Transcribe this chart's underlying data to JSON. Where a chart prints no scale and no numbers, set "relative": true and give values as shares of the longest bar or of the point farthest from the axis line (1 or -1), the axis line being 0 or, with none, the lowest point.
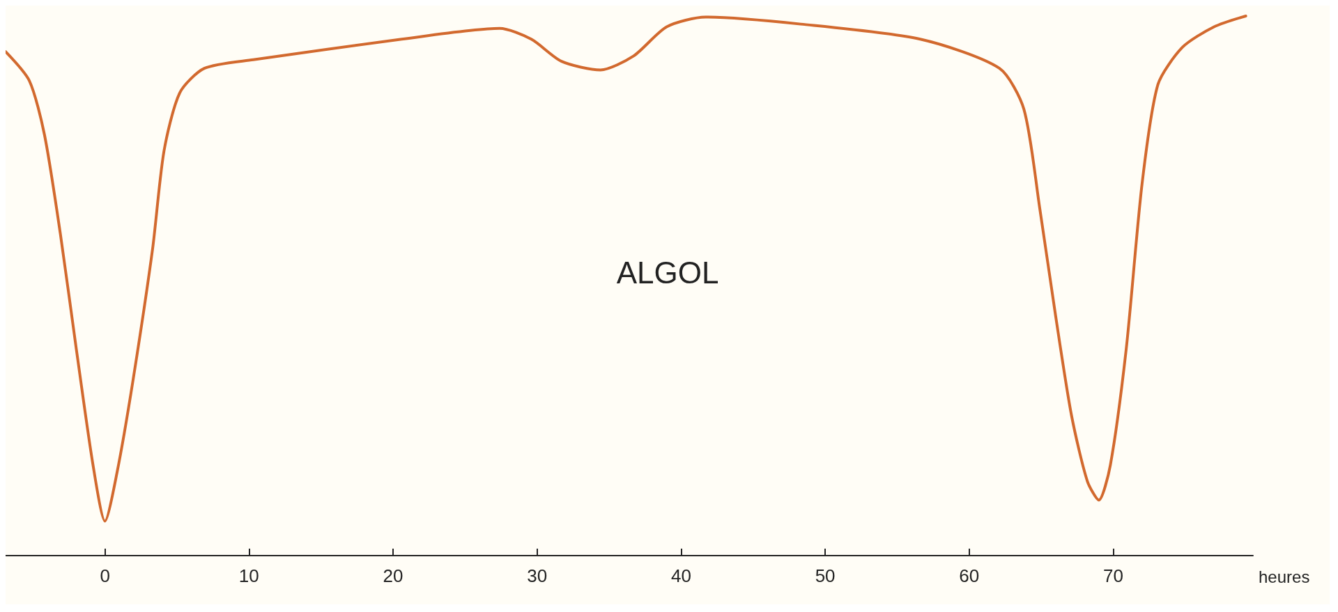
{
  "chart_data": {
    "type": "line",
    "relative": true,
    "xlabel": "heures",
    "annotations": [
      "ALGOL"
    ],
    "xlim": [
      -6.9,
      79.7
    ],
    "xticks": [
      0,
      10,
      20,
      30,
      40,
      50,
      60,
      70
    ],
    "grid": false,
    "marker": "none",
    "line_style": "solid",
    "tick_labels": "x",
    "series": [
      {
        "color": "#d2692e",
        "x": [
          -6.9,
          -5.25,
          -4.2,
          -3.1,
          -1.99,
          -0.83,
          0,
          0.83,
          1.93,
          3.3,
          4.1,
          5.2,
          6.9,
          10.3,
          20.6,
          27.4,
          29.6,
          31.7,
          34.4,
          36.7,
          39,
          41.7,
          48.3,
          56.6,
          62.1,
          63.8,
          64.9,
          66,
          67.1,
          68.2,
          69,
          69.8,
          70.9,
          72,
          73.1,
          74.8,
          77,
          79.2
        ],
        "values": [
          0.934,
          0.88,
          0.78,
          0.597,
          0.383,
          0.168,
          0.064,
          0.153,
          0.322,
          0.567,
          0.75,
          0.858,
          0.903,
          0.919,
          0.957,
          0.977,
          0.957,
          0.916,
          0.9,
          0.926,
          0.98,
          0.998,
          0.985,
          0.957,
          0.903,
          0.827,
          0.643,
          0.444,
          0.26,
          0.138,
          0.103,
          0.168,
          0.383,
          0.689,
          0.873,
          0.942,
          0.98,
          1.0
        ]
      }
    ]
  }
}
